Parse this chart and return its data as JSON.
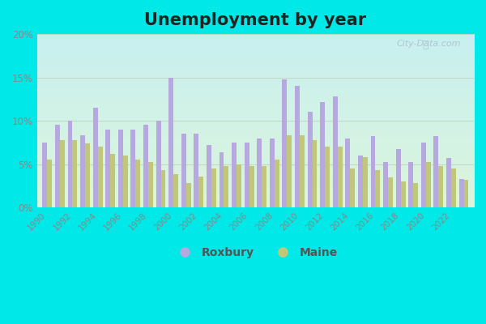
{
  "title": "Unemployment by year",
  "years": [
    1990,
    1991,
    1992,
    1993,
    1994,
    1995,
    1996,
    1997,
    1998,
    1999,
    2000,
    2001,
    2002,
    2003,
    2004,
    2005,
    2006,
    2007,
    2008,
    2009,
    2010,
    2011,
    2012,
    2013,
    2014,
    2015,
    2016,
    2017,
    2018,
    2019,
    2020,
    2021,
    2022,
    2023
  ],
  "roxbury": [
    7.5,
    9.5,
    10.0,
    8.3,
    11.5,
    9.0,
    9.0,
    9.0,
    9.5,
    10.0,
    15.0,
    8.5,
    8.5,
    7.2,
    6.4,
    7.5,
    7.5,
    8.0,
    8.0,
    14.8,
    14.0,
    11.0,
    12.2,
    12.8,
    8.0,
    6.0,
    8.2,
    5.2,
    6.7,
    5.2,
    7.5,
    8.2,
    5.7,
    3.3
  ],
  "maine": [
    5.5,
    7.8,
    7.8,
    7.4,
    7.0,
    6.2,
    6.0,
    5.5,
    5.2,
    4.3,
    3.8,
    2.8,
    3.6,
    4.5,
    4.8,
    5.0,
    4.8,
    4.8,
    5.5,
    8.3,
    8.3,
    7.8,
    7.0,
    7.0,
    4.5,
    5.8,
    4.3,
    3.5,
    3.0,
    2.8,
    5.2,
    4.8,
    4.5,
    3.2
  ],
  "roxbury_color": "#b8a8e0",
  "maine_color": "#c0c878",
  "bg_top": "#c8f0f0",
  "bg_bottom": "#d8f0e0",
  "bg_outer": "#00e8e8",
  "grid_color": "#c0d8c8",
  "ylim": [
    0,
    20
  ],
  "yticks": [
    0,
    5,
    10,
    15,
    20
  ],
  "bar_width": 0.38,
  "title_fontsize": 15,
  "watermark": "City-Data.com"
}
